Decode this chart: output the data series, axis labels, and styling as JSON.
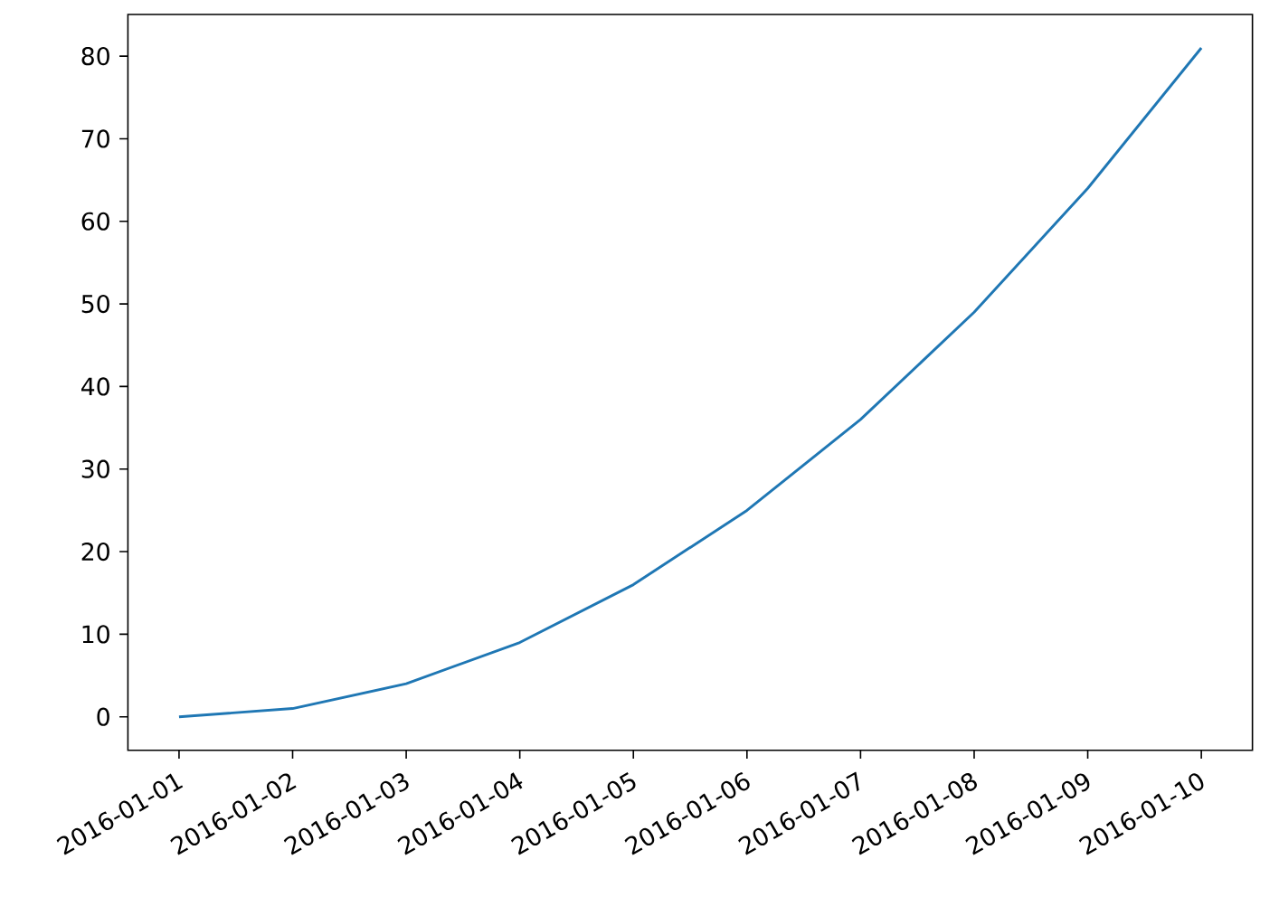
{
  "chart_data": {
    "type": "line",
    "x": [
      "2016-01-01",
      "2016-01-02",
      "2016-01-03",
      "2016-01-04",
      "2016-01-05",
      "2016-01-06",
      "2016-01-07",
      "2016-01-08",
      "2016-01-09",
      "2016-01-10"
    ],
    "series": [
      {
        "color": "#1f77b4",
        "values": [
          0,
          1,
          4,
          9,
          16,
          25,
          36,
          49,
          64,
          81
        ]
      }
    ],
    "xlim": [
      "2015-12-31T13:12",
      "2016-01-10T10:48"
    ],
    "xticks": [
      "2016-01-01",
      "2016-01-02",
      "2016-01-03",
      "2016-01-04",
      "2016-01-05",
      "2016-01-06",
      "2016-01-07",
      "2016-01-08",
      "2016-01-09",
      "2016-01-10"
    ],
    "ylim": [
      -4.05,
      85.05
    ],
    "yticks": [
      0,
      10,
      20,
      30,
      40,
      50,
      60,
      70,
      80
    ]
  }
}
